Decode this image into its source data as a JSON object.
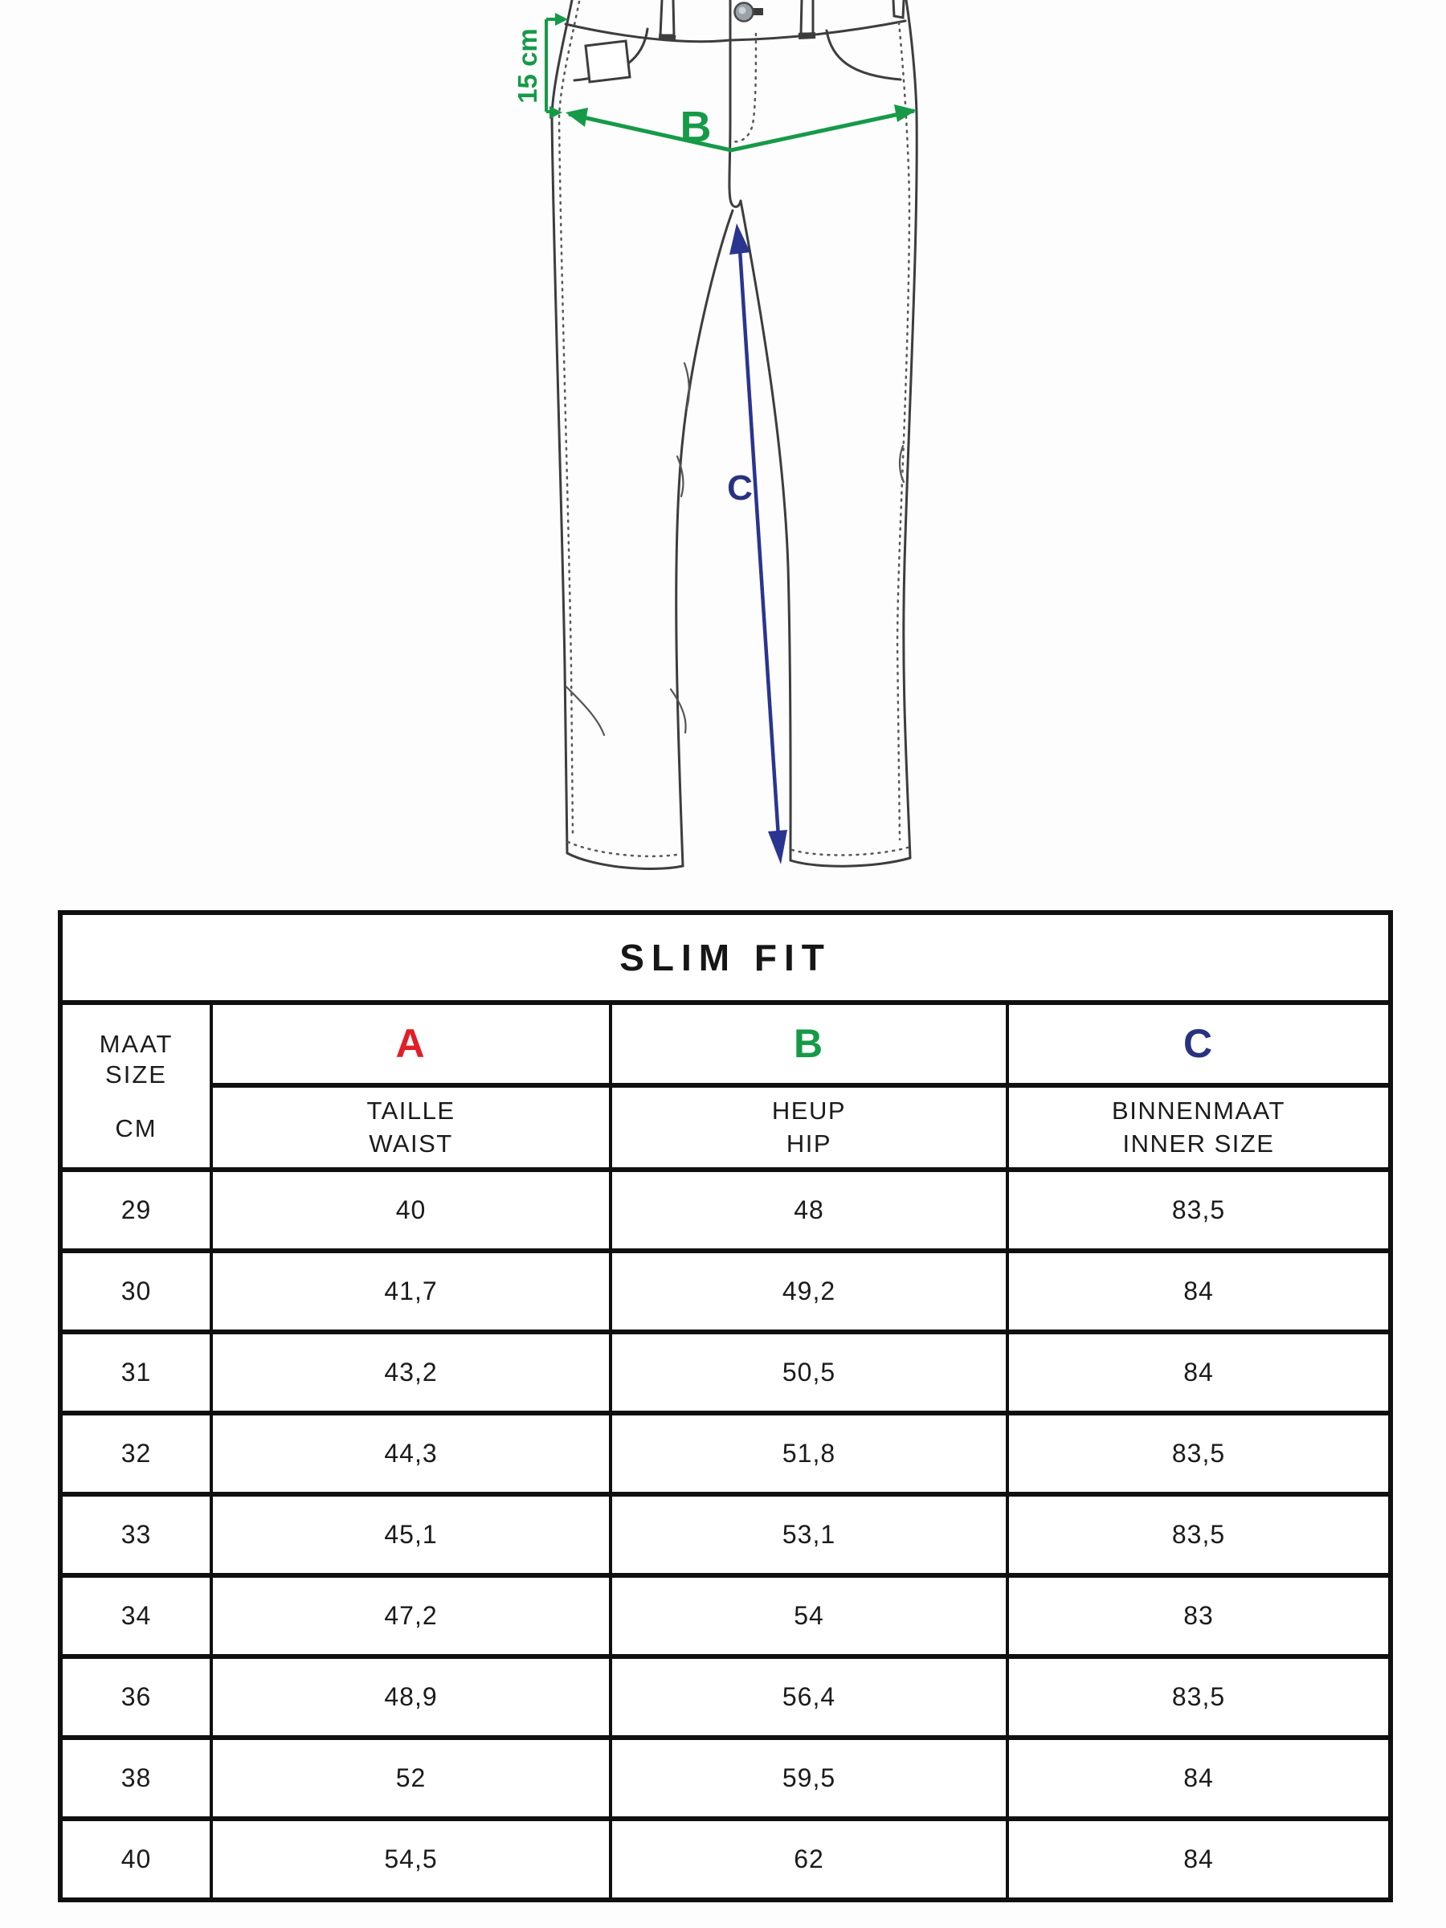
{
  "diagram": {
    "pocket_depth_label": "15 cm",
    "hip_label": "B",
    "inseam_label": "C",
    "colors": {
      "measure_green": "#169A48",
      "measure_navy": "#2A3590",
      "outline_gray": "#3D3D3D"
    }
  },
  "table": {
    "title": "SLIM FIT",
    "size_header": {
      "line1": "MAAT",
      "line2": "SIZE",
      "unit": "CM"
    },
    "columns": [
      {
        "letter": "A",
        "color": "#E21E26",
        "label_nl": "TAILLE",
        "label_en": "WAIST"
      },
      {
        "letter": "B",
        "color": "#169A48",
        "label_nl": "HEUP",
        "label_en": "HIP"
      },
      {
        "letter": "C",
        "color": "#28327E",
        "label_nl": "BINNENMAAT",
        "label_en": "INNER SIZE"
      }
    ],
    "rows": [
      {
        "size": "29",
        "a": "40",
        "b": "48",
        "c": "83,5"
      },
      {
        "size": "30",
        "a": "41,7",
        "b": "49,2",
        "c": "84"
      },
      {
        "size": "31",
        "a": "43,2",
        "b": "50,5",
        "c": "84"
      },
      {
        "size": "32",
        "a": "44,3",
        "b": "51,8",
        "c": "83,5"
      },
      {
        "size": "33",
        "a": "45,1",
        "b": "53,1",
        "c": "83,5"
      },
      {
        "size": "34",
        "a": "47,2",
        "b": "54",
        "c": "83"
      },
      {
        "size": "36",
        "a": "48,9",
        "b": "56,4",
        "c": "83,5"
      },
      {
        "size": "38",
        "a": "52",
        "b": "59,5",
        "c": "84"
      },
      {
        "size": "40",
        "a": "54,5",
        "b": "62",
        "c": "84"
      }
    ]
  }
}
